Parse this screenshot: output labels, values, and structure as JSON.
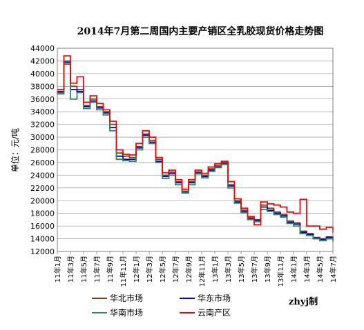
{
  "chart_data": {
    "type": "line",
    "title": "2014年7月第二周国内主要产销区全乳胶现货价格走势图",
    "ylabel": "单位：元/吨",
    "xlabel": "",
    "ylim": [
      12000,
      44000
    ],
    "yticks": [
      44000,
      42000,
      40000,
      38000,
      36000,
      34000,
      32000,
      30000,
      28000,
      26000,
      24000,
      22000,
      20000,
      18000,
      16000,
      14000,
      12000
    ],
    "xlim": [
      "2011-01",
      "2014-07"
    ],
    "xticks": [
      "11年1月",
      "11年3月",
      "11年5月",
      "11年7月",
      "11年9月",
      "11年11月",
      "12年1月",
      "12年3月",
      "12年5月",
      "12年7月",
      "12年9月",
      "12年11月",
      "13年1月",
      "13年3月",
      "13年5月",
      "13年7月",
      "13年9月",
      "13年11月",
      "14年1月",
      "14年3月",
      "14年5月",
      "14年7月"
    ],
    "grid": true,
    "legend_position": "bottom",
    "credit": "zhyj制",
    "series": [
      {
        "name": "华北市场",
        "color": "#8B3A0E",
        "x": [
          "2011-01",
          "2011-02",
          "2011-03",
          "2011-04",
          "2011-05",
          "2011-06",
          "2011-07",
          "2011-08",
          "2011-09",
          "2011-10",
          "2011-11",
          "2011-12",
          "2012-01",
          "2012-02",
          "2012-03",
          "2012-04",
          "2012-05",
          "2012-06",
          "2012-07",
          "2012-08",
          "2012-09",
          "2012-10",
          "2012-11",
          "2012-12",
          "2013-01",
          "2013-02",
          "2013-03",
          "2013-04",
          "2013-05",
          "2013-06",
          "2013-07",
          "2013-08",
          "2013-09",
          "2013-10",
          "2013-11",
          "2013-12",
          "2014-01",
          "2014-02",
          "2014-03",
          "2014-04",
          "2014-05",
          "2014-06",
          "2014-07"
        ],
        "values": [
          37000,
          41500,
          38000,
          37500,
          35000,
          36000,
          34800,
          34000,
          32000,
          27500,
          27000,
          26800,
          28500,
          30500,
          29500,
          26500,
          24000,
          24500,
          23000,
          21500,
          23000,
          24300,
          24000,
          25000,
          25500,
          26000,
          22500,
          20000,
          18500,
          17300,
          17000,
          19300,
          18800,
          18200,
          17800,
          16800,
          16500,
          15200,
          14800,
          14200,
          14000,
          14300,
          14000
        ]
      },
      {
        "name": "华东市场",
        "color": "#0000CC",
        "x": [
          "2011-01",
          "2011-02",
          "2011-03",
          "2011-04",
          "2011-05",
          "2011-06",
          "2011-07",
          "2011-08",
          "2011-09",
          "2011-10",
          "2011-11",
          "2011-12",
          "2012-01",
          "2012-02",
          "2012-03",
          "2012-04",
          "2012-05",
          "2012-06",
          "2012-07",
          "2012-08",
          "2012-09",
          "2012-10",
          "2012-11",
          "2012-12",
          "2013-01",
          "2013-02",
          "2013-03",
          "2013-04",
          "2013-05",
          "2013-06",
          "2013-07",
          "2013-08",
          "2013-09",
          "2013-10",
          "2013-11",
          "2013-12",
          "2014-01",
          "2014-02",
          "2014-03",
          "2014-04",
          "2014-05",
          "2014-06",
          "2014-07"
        ],
        "values": [
          37200,
          41800,
          37500,
          37200,
          34800,
          35700,
          34600,
          33800,
          31500,
          27000,
          26500,
          26500,
          28300,
          30300,
          29200,
          26200,
          23800,
          24300,
          22800,
          21300,
          22800,
          24500,
          23800,
          24800,
          25300,
          25800,
          22300,
          19800,
          18300,
          17100,
          16900,
          19000,
          18500,
          18000,
          17600,
          16600,
          16300,
          15000,
          14700,
          14100,
          13900,
          14200,
          13900
        ]
      },
      {
        "name": "华南市场",
        "color": "#2E8B57",
        "x": [
          "2011-01",
          "2011-02",
          "2011-03",
          "2011-04",
          "2011-05",
          "2011-06",
          "2011-07",
          "2011-08",
          "2011-09",
          "2011-10",
          "2011-11",
          "2011-12",
          "2012-01",
          "2012-02",
          "2012-03",
          "2012-04",
          "2012-05",
          "2012-06",
          "2012-07",
          "2012-08",
          "2012-09",
          "2012-10",
          "2012-11",
          "2012-12",
          "2013-01",
          "2013-02",
          "2013-03",
          "2013-04",
          "2013-05",
          "2013-06",
          "2013-07",
          "2013-08",
          "2013-09",
          "2013-10",
          "2013-11",
          "2013-12",
          "2014-01",
          "2014-02",
          "2014-03",
          "2014-04",
          "2014-05",
          "2014-06",
          "2014-07"
        ],
        "values": [
          36800,
          42000,
          36000,
          37000,
          34500,
          35500,
          34300,
          33500,
          31000,
          26500,
          26300,
          26200,
          28000,
          30000,
          29000,
          26000,
          23500,
          24000,
          22500,
          21200,
          22500,
          24200,
          23600,
          24600,
          25200,
          25700,
          22000,
          19600,
          18100,
          17000,
          16700,
          18600,
          18300,
          17800,
          17400,
          16400,
          16000,
          14800,
          14500,
          14000,
          13700,
          14000,
          13600
        ]
      },
      {
        "name": "云南产区",
        "color": "#FF0000",
        "x": [
          "2011-01",
          "2011-02",
          "2011-03",
          "2011-04",
          "2011-05",
          "2011-06",
          "2011-07",
          "2011-08",
          "2011-09",
          "2011-10",
          "2011-11",
          "2011-12",
          "2012-01",
          "2012-02",
          "2012-03",
          "2012-04",
          "2012-05",
          "2012-06",
          "2012-07",
          "2012-08",
          "2012-09",
          "2012-10",
          "2012-11",
          "2012-12",
          "2013-01",
          "2013-02",
          "2013-03",
          "2013-04",
          "2013-05",
          "2013-06",
          "2013-07",
          "2013-08",
          "2013-09",
          "2013-10",
          "2013-11",
          "2013-12",
          "2014-01",
          "2014-02",
          "2014-03",
          "2014-04",
          "2014-05",
          "2014-06",
          "2014-07"
        ],
        "values": [
          37500,
          42800,
          38500,
          39500,
          35500,
          36500,
          35300,
          34300,
          32500,
          28000,
          27300,
          27200,
          29000,
          31000,
          30000,
          26800,
          24400,
          24800,
          23300,
          21800,
          23300,
          24800,
          24300,
          25300,
          25800,
          26200,
          23000,
          20300,
          18800,
          17500,
          16200,
          19800,
          19500,
          19300,
          19000,
          18200,
          18000,
          20200,
          16000,
          16000,
          15500,
          15800,
          15000
        ]
      }
    ]
  }
}
